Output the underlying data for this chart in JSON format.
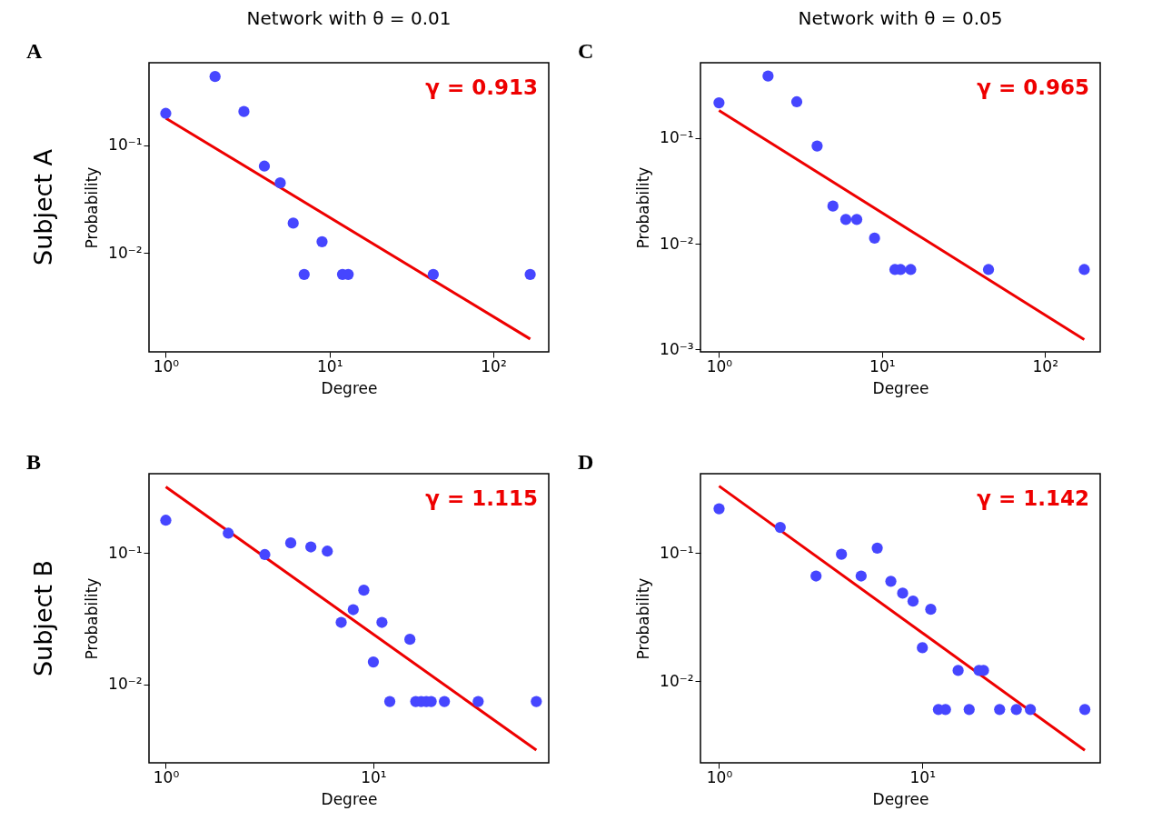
{
  "chart_data": [
    {
      "type": "scatter",
      "title": "Network with θ = 0.01",
      "xlabel": "Degree",
      "ylabel": "Probability",
      "log": "xy",
      "xlim": [
        0.79,
        218
      ],
      "ylim": [
        0.0012,
        0.586
      ],
      "xticks": [
        {
          "value": 1,
          "label": "10⁰"
        },
        {
          "value": 10,
          "label": "10¹"
        },
        {
          "value": 100,
          "label": "10²"
        }
      ],
      "yticks": [
        {
          "value": 0.01,
          "label": "10⁻²"
        },
        {
          "value": 0.1,
          "label": "10⁻¹"
        }
      ],
      "series": [
        {
          "color": "#4646ff",
          "marker": "circle",
          "x": [
            1,
            2,
            3,
            4,
            5,
            6,
            7,
            9,
            12,
            13,
            43,
            168
          ],
          "values": [
            0.198,
            0.436,
            0.206,
            0.064,
            0.0447,
            0.0189,
            0.0063,
            0.0127,
            0.0063,
            0.0063,
            0.0063,
            0.0063
          ]
        },
        {
          "type": "line",
          "color": "#ee0000",
          "x": [
            1,
            168
          ],
          "values": [
            0.179,
            0.00158
          ]
        }
      ],
      "annotations": [
        "A",
        "Subject A",
        "γ = 0.913"
      ]
    },
    {
      "type": "scatter",
      "title": "Network with θ = 0.05",
      "xlabel": "Degree",
      "ylabel": "Probability",
      "log": "xy",
      "xlim": [
        0.77,
        218
      ],
      "ylim": [
        0.00095,
        0.515
      ],
      "xticks": [
        {
          "value": 1,
          "label": "10⁰"
        },
        {
          "value": 10,
          "label": "10¹"
        },
        {
          "value": 100,
          "label": "10²"
        }
      ],
      "yticks": [
        {
          "value": 0.001,
          "label": "10⁻³"
        },
        {
          "value": 0.01,
          "label": "10⁻²"
        },
        {
          "value": 0.1,
          "label": "10⁻¹"
        }
      ],
      "series": [
        {
          "color": "#4646ff",
          "marker": "circle",
          "x": [
            1,
            2,
            3,
            4,
            5,
            6,
            7,
            9,
            12,
            13,
            15,
            45,
            174
          ],
          "values": [
            0.215,
            0.385,
            0.22,
            0.084,
            0.0227,
            0.017,
            0.017,
            0.0113,
            0.0057,
            0.0057,
            0.0057,
            0.0057,
            0.0057
          ]
        },
        {
          "type": "line",
          "color": "#ee0000",
          "x": [
            1,
            174
          ],
          "values": [
            0.182,
            0.00124
          ]
        }
      ],
      "annotations": [
        "C",
        "γ = 0.965"
      ]
    },
    {
      "type": "scatter",
      "xlabel": "Degree",
      "ylabel": "Probability",
      "log": "xy",
      "xlim": [
        0.83,
        70
      ],
      "ylim": [
        0.00253,
        0.4
      ],
      "xticks": [
        {
          "value": 1,
          "label": "10⁰"
        },
        {
          "value": 10,
          "label": "10¹"
        }
      ],
      "yticks": [
        {
          "value": 0.01,
          "label": "10⁻²"
        },
        {
          "value": 0.1,
          "label": "10⁻¹"
        }
      ],
      "series": [
        {
          "color": "#4646ff",
          "marker": "circle",
          "x": [
            1,
            2,
            3,
            4,
            5,
            6,
            7,
            8,
            9,
            10,
            11,
            12,
            15,
            16,
            17,
            18,
            19,
            22,
            32,
            61
          ],
          "values": [
            0.177,
            0.141,
            0.097,
            0.119,
            0.111,
            0.103,
            0.0296,
            0.037,
            0.052,
            0.0148,
            0.0296,
            0.0074,
            0.022,
            0.0074,
            0.0074,
            0.0074,
            0.0074,
            0.0074,
            0.0074,
            0.0074
          ]
        },
        {
          "type": "line",
          "color": "#ee0000",
          "x": [
            1,
            61
          ],
          "values": [
            0.318,
            0.00316
          ]
        }
      ],
      "annotations": [
        "B",
        "Subject B",
        "γ = 1.115"
      ]
    },
    {
      "type": "scatter",
      "xlabel": "Degree",
      "ylabel": "Probability",
      "log": "xy",
      "xlim": [
        0.81,
        75
      ],
      "ylim": [
        0.0023,
        0.415
      ],
      "xticks": [
        {
          "value": 1,
          "label": "10⁰"
        },
        {
          "value": 10,
          "label": "10¹"
        }
      ],
      "yticks": [
        {
          "value": 0.01,
          "label": "10⁻²"
        },
        {
          "value": 0.1,
          "label": "10⁻¹"
        }
      ],
      "series": [
        {
          "color": "#4646ff",
          "marker": "circle",
          "x": [
            1,
            2,
            3,
            4,
            5,
            6,
            7,
            8,
            9,
            10,
            11,
            12,
            13,
            15,
            17,
            19,
            20,
            24,
            29,
            34,
            63
          ],
          "values": [
            0.221,
            0.158,
            0.066,
            0.0975,
            0.066,
            0.109,
            0.06,
            0.0485,
            0.042,
            0.0182,
            0.0363,
            0.006,
            0.006,
            0.0121,
            0.006,
            0.0121,
            0.0121,
            0.006,
            0.006,
            0.006,
            0.006
          ]
        },
        {
          "type": "line",
          "color": "#ee0000",
          "x": [
            1,
            63
          ],
          "values": [
            0.332,
            0.00288
          ]
        }
      ],
      "annotations": [
        "D",
        "γ = 1.142"
      ]
    }
  ]
}
